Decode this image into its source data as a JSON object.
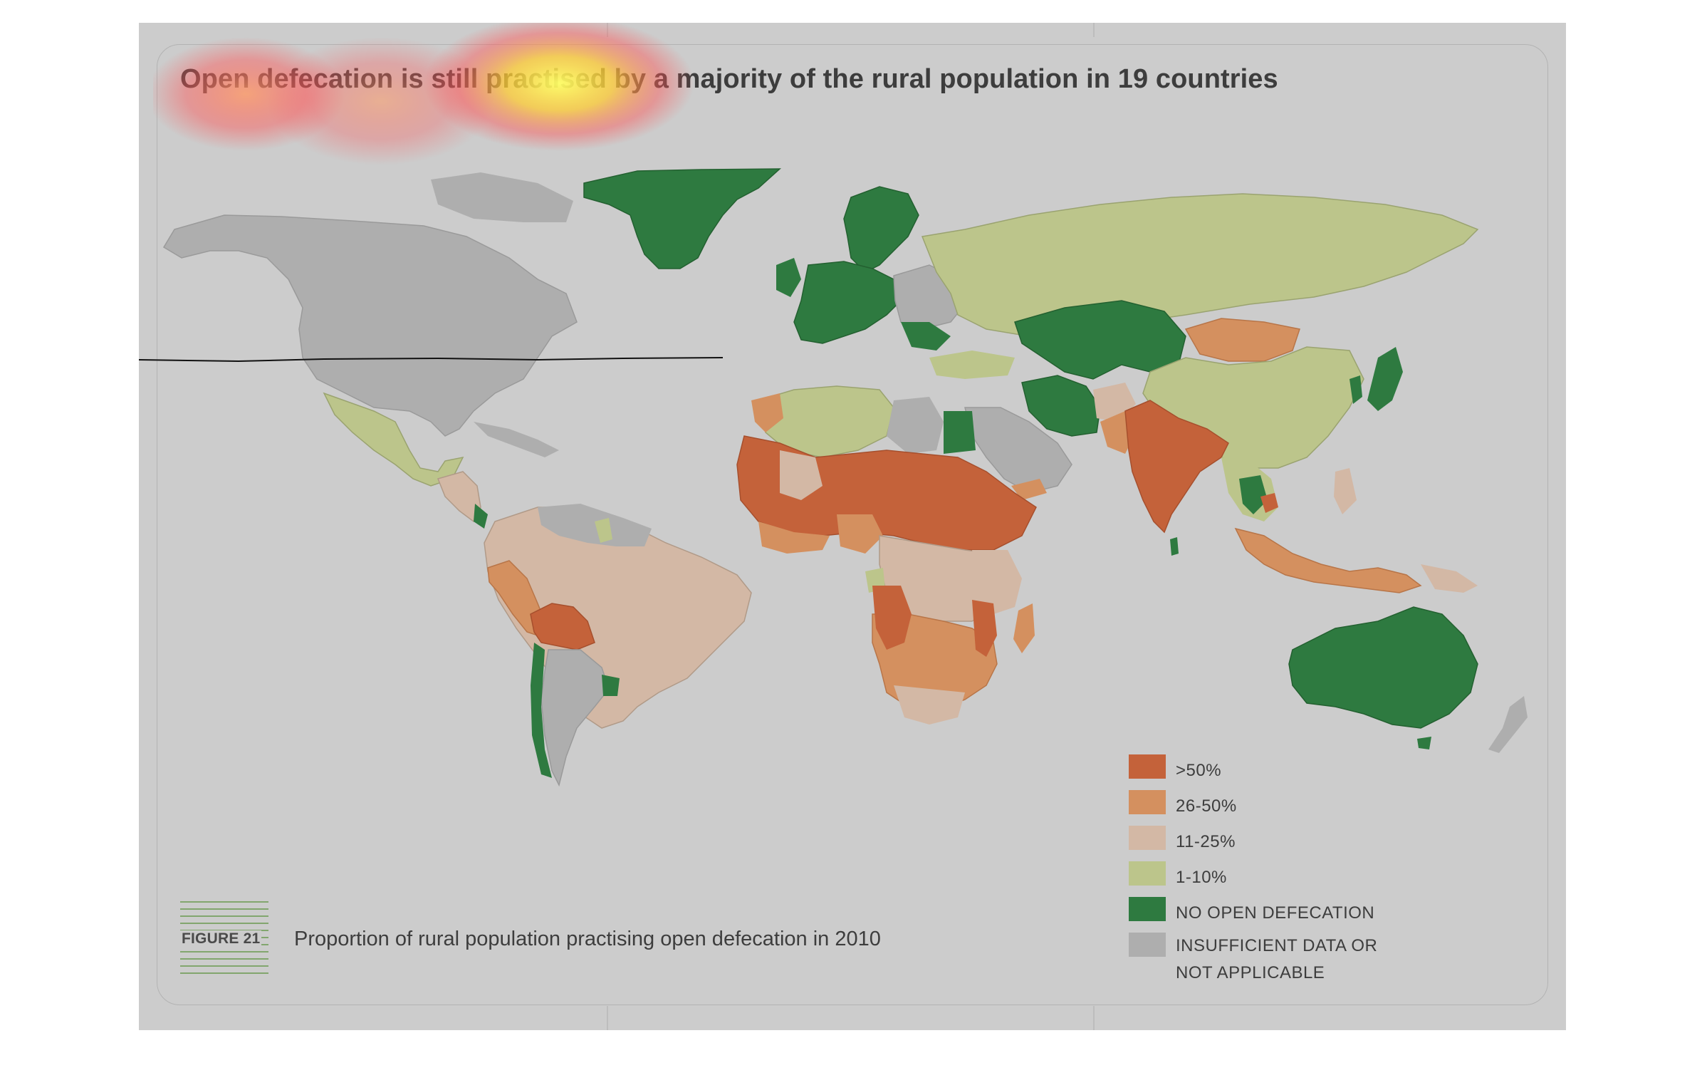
{
  "title": "Open defecation is still practised by a majority of the rural population in 19 countries",
  "figure": {
    "label": "FIGURE 21",
    "caption": "Proportion of rural population practising open defecation in 2010"
  },
  "legend": [
    {
      "label": ">50%",
      "color": "#c4623a",
      "key": "gt50"
    },
    {
      "label": "26-50%",
      "color": "#d4905f",
      "key": "p26_50"
    },
    {
      "label": "11-25%",
      "color": "#d3b8a5",
      "key": "p11_25"
    },
    {
      "label": "1-10%",
      "color": "#bcc58b",
      "key": "p1_10"
    },
    {
      "label": "NO OPEN DEFECATION",
      "color": "#2e7a40",
      "key": "none"
    },
    {
      "label": "INSUFFICIENT DATA OR",
      "label2": "NOT APPLICABLE",
      "color": "#aeaeae",
      "key": "na"
    }
  ],
  "colors": {
    "background": "#cccccc",
    "ocean": "#cccccc"
  }
}
